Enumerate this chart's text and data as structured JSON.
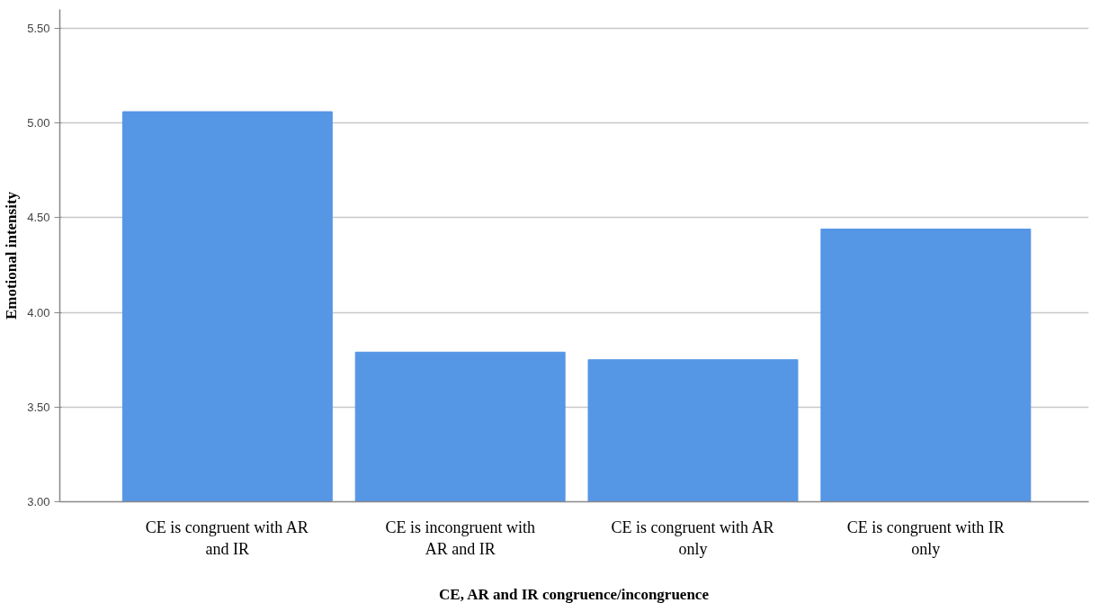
{
  "chart_data": {
    "type": "bar",
    "xlabel": "CE, AR and IR congruence/incongruence",
    "ylabel": "Emotional intensity",
    "categories": [
      "CE is congruent with AR and IR",
      "CE is incongruent with AR and IR",
      "CE is congruent with AR only",
      "CE is congruent with IR only"
    ],
    "values": [
      5.06,
      3.79,
      3.75,
      4.44
    ],
    "color": "#5596e5",
    "ylim": [
      3.0,
      5.6
    ],
    "yticks": [
      {
        "value": 3.0,
        "label": "3.00"
      },
      {
        "value": 3.5,
        "label": "3.50"
      },
      {
        "value": 4.0,
        "label": "4.00"
      },
      {
        "value": 4.5,
        "label": "4.50"
      },
      {
        "value": 5.0,
        "label": "5.00"
      },
      {
        "value": 5.5,
        "label": "5.50"
      }
    ],
    "grid": "y"
  }
}
